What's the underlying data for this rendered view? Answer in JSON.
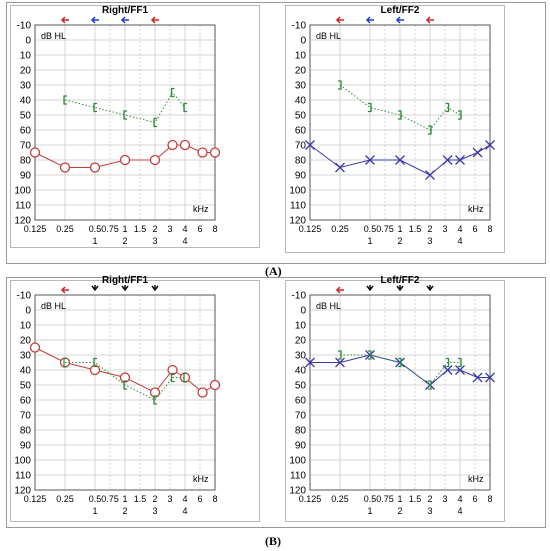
{
  "figure": {
    "labels": {
      "a": "(A)",
      "b": "(B)"
    }
  },
  "chart_data": [
    {
      "type": "line",
      "title": "Right/FF1",
      "ylabel": "dB HL",
      "xlabel": "kHz",
      "x_ticks_top": [
        "0.125",
        "0.25",
        "0.5",
        "1",
        "2",
        "4",
        "8"
      ],
      "x_ticks_bottom": [
        "0.75",
        "1.5",
        "3",
        "6"
      ],
      "x_ticks_bottom_sub": [
        "1",
        "2",
        "3",
        "4"
      ],
      "y_ticks": [
        "-10",
        "0",
        "10",
        "20",
        "30",
        "40",
        "50",
        "60",
        "70",
        "80",
        "90",
        "100",
        "110",
        "120"
      ],
      "ylim": [
        -10,
        120
      ],
      "xlim": [
        "0.125",
        "8"
      ],
      "grid": true,
      "axis_marks": [
        {
          "freq": 0.25,
          "color": "#d42020"
        },
        {
          "freq": 0.5,
          "color": "#1a3ccc"
        },
        {
          "freq": 1,
          "color": "#1a3ccc"
        },
        {
          "freq": 2,
          "color": "#d42020"
        }
      ],
      "series": [
        {
          "marker": "circle",
          "color": "#c43c3c",
          "line": "solid",
          "points": [
            [
              0.125,
              75
            ],
            [
              0.25,
              85
            ],
            [
              0.5,
              85
            ],
            [
              1,
              80
            ],
            [
              2,
              80
            ],
            [
              3,
              70
            ],
            [
              4,
              70
            ],
            [
              6,
              75
            ],
            [
              8,
              75
            ]
          ]
        },
        {
          "marker": "bracket-left",
          "color": "#2e8b3a",
          "line": "dotted",
          "points": [
            [
              0.25,
              40
            ],
            [
              0.5,
              45
            ],
            [
              1,
              50
            ],
            [
              2,
              55
            ],
            [
              3,
              35
            ],
            [
              4,
              45
            ]
          ]
        }
      ]
    },
    {
      "type": "line",
      "title": "Left/FF2",
      "ylabel": "dB HL",
      "xlabel": "kHz",
      "x_ticks_top": [
        "0.125",
        "0.25",
        "0.5",
        "1",
        "2",
        "4",
        "8"
      ],
      "x_ticks_bottom": [
        "0.75",
        "1.5",
        "3",
        "6"
      ],
      "x_ticks_bottom_sub": [
        "1",
        "2",
        "3",
        "4"
      ],
      "y_ticks": [
        "-10",
        "0",
        "10",
        "20",
        "30",
        "40",
        "50",
        "60",
        "70",
        "80",
        "90",
        "100",
        "110",
        "120"
      ],
      "ylim": [
        -10,
        120
      ],
      "xlim": [
        "0.125",
        "8"
      ],
      "grid": true,
      "axis_marks": [
        {
          "freq": 0.25,
          "color": "#d42020"
        },
        {
          "freq": 0.5,
          "color": "#1a3ccc"
        },
        {
          "freq": 1,
          "color": "#1a3ccc"
        },
        {
          "freq": 2,
          "color": "#d42020"
        }
      ],
      "series": [
        {
          "marker": "x",
          "color": "#3a3aa8",
          "line": "solid",
          "points": [
            [
              0.125,
              70
            ],
            [
              0.25,
              85
            ],
            [
              0.5,
              80
            ],
            [
              1,
              80
            ],
            [
              2,
              90
            ],
            [
              3,
              80
            ],
            [
              4,
              80
            ],
            [
              6,
              75
            ],
            [
              8,
              70
            ]
          ]
        },
        {
          "marker": "bracket-right",
          "color": "#2e8b3a",
          "line": "dotted",
          "points": [
            [
              0.25,
              30
            ],
            [
              0.5,
              45
            ],
            [
              1,
              50
            ],
            [
              2,
              60
            ],
            [
              3,
              45
            ],
            [
              4,
              50
            ]
          ]
        }
      ]
    },
    {
      "type": "line",
      "title": "Right/FF1",
      "ylabel": "dB HL",
      "xlabel": "kHz",
      "x_ticks_top": [
        "0.125",
        "0.25",
        "0.5",
        "1",
        "2",
        "4",
        "8"
      ],
      "x_ticks_bottom": [
        "0.75",
        "1.5",
        "3",
        "6"
      ],
      "x_ticks_bottom_sub": [
        "1",
        "2",
        "3",
        "4"
      ],
      "y_ticks": [
        "-10",
        "0",
        "10",
        "20",
        "30",
        "40",
        "50",
        "60",
        "70",
        "80",
        "90",
        "100",
        "110",
        "120"
      ],
      "ylim": [
        -10,
        120
      ],
      "xlim": [
        "0.125",
        "8"
      ],
      "grid": true,
      "axis_marks": [
        {
          "freq": 0.25,
          "color": "#d42020"
        },
        {
          "freq": 0.5,
          "color": "#111111",
          "shape": "down"
        },
        {
          "freq": 1,
          "color": "#111111",
          "shape": "down"
        },
        {
          "freq": 2,
          "color": "#111111",
          "shape": "down"
        }
      ],
      "series": [
        {
          "marker": "circle",
          "color": "#c43c3c",
          "line": "solid",
          "points": [
            [
              0.125,
              25
            ],
            [
              0.25,
              35
            ],
            [
              0.5,
              40
            ],
            [
              1,
              45
            ],
            [
              2,
              55
            ],
            [
              3,
              40
            ],
            [
              4,
              45
            ],
            [
              6,
              55
            ],
            [
              8,
              50
            ]
          ]
        },
        {
          "marker": "bracket-left",
          "color": "#2e8b3a",
          "line": "dotted",
          "points": [
            [
              0.25,
              35
            ],
            [
              0.5,
              35
            ],
            [
              1,
              50
            ],
            [
              2,
              60
            ],
            [
              3,
              45
            ],
            [
              4,
              45
            ]
          ]
        }
      ]
    },
    {
      "type": "line",
      "title": "Left/FF2",
      "ylabel": "dB HL",
      "xlabel": "kHz",
      "x_ticks_top": [
        "0.125",
        "0.25",
        "0.5",
        "1",
        "2",
        "4",
        "8"
      ],
      "x_ticks_bottom": [
        "0.75",
        "1.5",
        "3",
        "6"
      ],
      "x_ticks_bottom_sub": [
        "1",
        "2",
        "3",
        "4"
      ],
      "y_ticks": [
        "-10",
        "0",
        "10",
        "20",
        "30",
        "40",
        "50",
        "60",
        "70",
        "80",
        "90",
        "100",
        "110",
        "120"
      ],
      "ylim": [
        -10,
        120
      ],
      "xlim": [
        "0.125",
        "8"
      ],
      "grid": true,
      "axis_marks": [
        {
          "freq": 0.25,
          "color": "#d42020"
        },
        {
          "freq": 0.5,
          "color": "#111111",
          "shape": "down"
        },
        {
          "freq": 1,
          "color": "#111111",
          "shape": "down"
        },
        {
          "freq": 2,
          "color": "#111111",
          "shape": "down"
        }
      ],
      "series": [
        {
          "marker": "x",
          "color": "#3a3aa8",
          "line": "solid",
          "points": [
            [
              0.125,
              35
            ],
            [
              0.25,
              35
            ],
            [
              0.5,
              30
            ],
            [
              1,
              35
            ],
            [
              2,
              50
            ],
            [
              3,
              40
            ],
            [
              4,
              40
            ],
            [
              6,
              45
            ],
            [
              8,
              45
            ]
          ]
        },
        {
          "marker": "bracket-right",
          "color": "#2e8b3a",
          "line": "dotted",
          "points": [
            [
              0.25,
              30
            ],
            [
              0.5,
              30
            ],
            [
              1,
              35
            ],
            [
              2,
              50
            ],
            [
              3,
              35
            ],
            [
              4,
              35
            ]
          ]
        }
      ]
    }
  ]
}
